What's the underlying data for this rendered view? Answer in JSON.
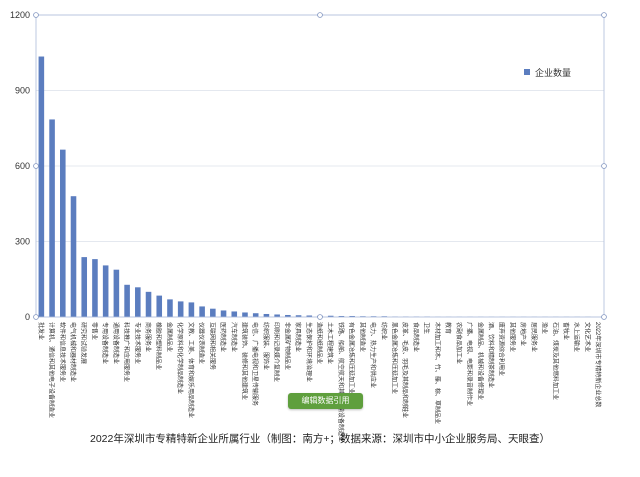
{
  "chart_data": {
    "type": "bar",
    "title": "",
    "xlabel": "",
    "ylabel": "",
    "ylim": [
      0,
      1200
    ],
    "yticks": [
      0,
      300,
      600,
      900,
      1200
    ],
    "grid": true,
    "legend": "right",
    "categories": [
      "批发业",
      "计算机、通信和其他电子设备制造业",
      "软件和信息技术服务业",
      "电气机械和器材制造业",
      "研究和试验发展",
      "零售业",
      "专用设备制造业",
      "通用设备制造业",
      "科技推广和应用服务业",
      "专业技术服务业",
      "商务服务业",
      "橡胶和塑料制品业",
      "金属制品业",
      "化学原料和化学制品制造业",
      "文教、工美、体育和娱乐用品制造业",
      "仪器仪表制造业",
      "互联网和相关服务",
      "医药制造业",
      "汽车制造业",
      "建筑装饰、装修和其他建筑业",
      "电信、广播电视和卫星传输服务",
      "纺织服装、服饰业",
      "印刷和记录媒介复制业",
      "非金属矿物制品业",
      "家具制造业",
      "生态保护和环境治理业",
      "造纸和纸制品业",
      "土木工程建筑业",
      "铁路、船舶、航空航天和其他运输设备制造业",
      "有色金属冶炼和压延加工业",
      "其他制造业",
      "电力、热力生产和供应业",
      "纺织业",
      "黑色金属冶炼和压延加工业",
      "皮革、毛皮、羽毛及其制品和制鞋业",
      "食品制造业",
      "卫生",
      "木材加工和木、竹、藤、棕、草制品业",
      "教育",
      "农副食品加工业",
      "广播、电视、电影和录音制作业",
      "金属制品、机械和设备修理业",
      "酒、饮料和精制茶制造业",
      "废弃资源综合利用业",
      "其他服务业",
      "房地产业",
      "居民服务业",
      "渔业",
      "石油、煤炭及其他燃料加工业",
      "畜牧业",
      "水上运输业",
      "文化艺术业",
      "2022年深圳市专精特新企业总数"
    ],
    "series": [
      {
        "name": "企业数量",
        "color": "#5b7dbf",
        "values": [
          1035,
          785,
          665,
          480,
          238,
          230,
          205,
          188,
          128,
          118,
          100,
          85,
          70,
          62,
          58,
          42,
          33,
          26,
          22,
          18,
          15,
          12,
          10,
          8,
          7,
          6,
          5,
          5,
          4,
          4,
          3,
          3,
          3,
          2,
          2,
          2,
          2,
          1,
          1,
          1,
          1,
          1,
          1,
          1,
          1,
          1,
          1,
          1,
          1,
          1,
          1,
          1,
          0
        ]
      }
    ]
  },
  "button": {
    "label": "编辑数据引用"
  },
  "caption": "2022年深圳市专精特新企业所属行业（制图：南方+；数据来源：深圳市中小企业服务局、天眼查）"
}
